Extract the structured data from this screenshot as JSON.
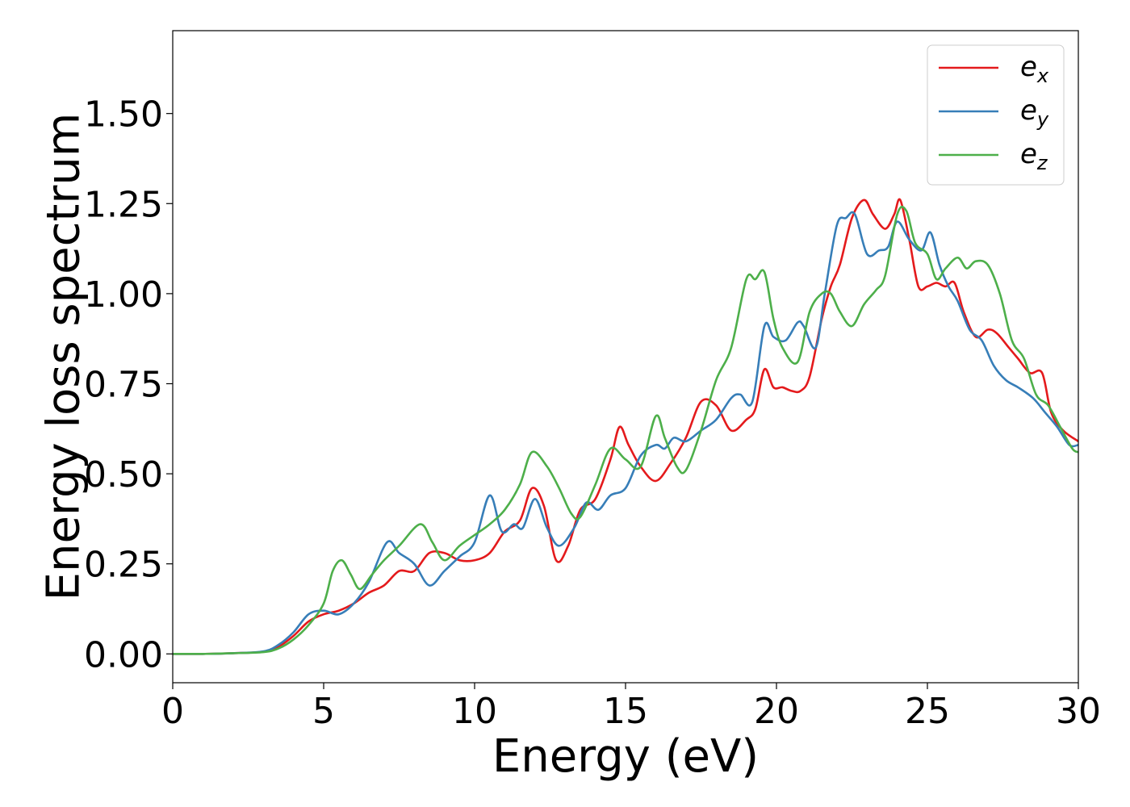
{
  "chart_data": {
    "type": "line",
    "xlabel": "Energy (eV)",
    "ylabel": "Energy loss spectrum",
    "xlim": [
      0,
      30
    ],
    "ylim": [
      -0.08,
      1.73
    ],
    "xticks": [
      0,
      5,
      10,
      15,
      20,
      25,
      30
    ],
    "xtick_labels": [
      "0",
      "5",
      "10",
      "15",
      "20",
      "25",
      "30"
    ],
    "yticks": [
      0.0,
      0.25,
      0.5,
      0.75,
      1.0,
      1.25,
      1.5
    ],
    "ytick_labels": [
      "0.00",
      "0.25",
      "0.50",
      "0.75",
      "1.00",
      "1.25",
      "1.50"
    ],
    "grid": false,
    "legend_position": "top-right",
    "series": [
      {
        "name": "e_x",
        "label_base": "e",
        "label_sub": "x",
        "color": "#e41a1c",
        "x": [
          0,
          1,
          2,
          3,
          3.5,
          4,
          4.5,
          5,
          5.5,
          6,
          6.5,
          7,
          7.5,
          8,
          8.5,
          9,
          9.5,
          10,
          10.5,
          11,
          11.5,
          11.9,
          12.3,
          12.7,
          13.1,
          13.5,
          14,
          14.5,
          14.8,
          15.1,
          15.5,
          16,
          16.5,
          17,
          17.5,
          18,
          18.5,
          19,
          19.3,
          19.6,
          19.9,
          20.2,
          20.5,
          20.8,
          21.1,
          21.5,
          21.8,
          22.1,
          22.5,
          22.9,
          23.2,
          23.6,
          23.9,
          24.1,
          24.4,
          24.7,
          25,
          25.3,
          25.6,
          25.9,
          26.2,
          26.6,
          27,
          27.3,
          27.7,
          28,
          28.4,
          28.8,
          29.1,
          29.5,
          30
        ],
        "y": [
          0,
          0,
          0.002,
          0.006,
          0.02,
          0.05,
          0.09,
          0.11,
          0.12,
          0.14,
          0.17,
          0.19,
          0.23,
          0.23,
          0.28,
          0.28,
          0.26,
          0.26,
          0.28,
          0.34,
          0.37,
          0.46,
          0.41,
          0.26,
          0.3,
          0.4,
          0.43,
          0.54,
          0.63,
          0.58,
          0.52,
          0.48,
          0.53,
          0.6,
          0.7,
          0.69,
          0.62,
          0.65,
          0.68,
          0.79,
          0.74,
          0.74,
          0.73,
          0.73,
          0.77,
          0.93,
          1.02,
          1.08,
          1.21,
          1.26,
          1.22,
          1.18,
          1.22,
          1.26,
          1.15,
          1.02,
          1.02,
          1.03,
          1.02,
          1.03,
          0.95,
          0.88,
          0.9,
          0.89,
          0.85,
          0.82,
          0.78,
          0.78,
          0.67,
          0.62,
          0.59
        ]
      },
      {
        "name": "e_y",
        "label_base": "e",
        "label_sub": "y",
        "color": "#377eb8",
        "x": [
          0,
          1,
          2,
          3,
          3.5,
          4,
          4.5,
          5,
          5.5,
          6,
          6.5,
          7.1,
          7.5,
          8,
          8.5,
          9,
          9.5,
          10,
          10.5,
          10.9,
          11.3,
          11.6,
          12,
          12.4,
          12.8,
          13.3,
          13.7,
          14.1,
          14.5,
          15,
          15.5,
          16,
          16.3,
          16.6,
          17,
          17.5,
          18,
          18.5,
          18.8,
          19.2,
          19.6,
          19.9,
          20.3,
          20.7,
          20.9,
          21.3,
          21.6,
          22,
          22.3,
          22.6,
          23,
          23.4,
          23.7,
          24,
          24.4,
          24.8,
          25.1,
          25.4,
          25.7,
          26,
          26.4,
          26.8,
          27.2,
          27.6,
          28,
          28.5,
          28.9,
          29.3,
          29.7,
          30
        ],
        "y": [
          0,
          0,
          0.002,
          0.007,
          0.025,
          0.06,
          0.11,
          0.12,
          0.11,
          0.14,
          0.2,
          0.31,
          0.28,
          0.25,
          0.19,
          0.23,
          0.27,
          0.31,
          0.44,
          0.34,
          0.36,
          0.35,
          0.43,
          0.35,
          0.3,
          0.35,
          0.42,
          0.4,
          0.44,
          0.46,
          0.55,
          0.58,
          0.57,
          0.6,
          0.59,
          0.62,
          0.65,
          0.71,
          0.72,
          0.7,
          0.91,
          0.88,
          0.87,
          0.92,
          0.91,
          0.85,
          1.0,
          1.19,
          1.21,
          1.22,
          1.11,
          1.12,
          1.13,
          1.2,
          1.15,
          1.12,
          1.17,
          1.08,
          1.02,
          0.98,
          0.9,
          0.87,
          0.8,
          0.76,
          0.74,
          0.71,
          0.67,
          0.63,
          0.58,
          0.58
        ]
      },
      {
        "name": "e_z",
        "label_base": "e",
        "label_sub": "z",
        "color": "#4daf4a",
        "x": [
          0,
          1,
          2,
          3,
          3.5,
          4,
          4.5,
          5,
          5.3,
          5.6,
          5.9,
          6.2,
          6.6,
          7,
          7.5,
          8.2,
          8.6,
          9,
          9.5,
          10,
          10.5,
          11,
          11.5,
          11.9,
          12.4,
          12.8,
          13.2,
          13.5,
          14,
          14.5,
          15,
          15.5,
          16,
          16.3,
          16.7,
          17,
          17.5,
          18,
          18.5,
          19,
          19.3,
          19.6,
          19.9,
          20.2,
          20.7,
          21.1,
          21.5,
          21.8,
          22.1,
          22.5,
          22.9,
          23.3,
          23.6,
          24,
          24.3,
          24.6,
          25,
          25.3,
          25.6,
          26,
          26.3,
          26.6,
          27,
          27.4,
          27.8,
          28.2,
          28.6,
          29,
          29.4,
          29.8,
          30
        ],
        "y": [
          0,
          0,
          0.002,
          0.005,
          0.015,
          0.04,
          0.08,
          0.14,
          0.23,
          0.26,
          0.22,
          0.18,
          0.22,
          0.26,
          0.3,
          0.36,
          0.31,
          0.26,
          0.3,
          0.33,
          0.36,
          0.4,
          0.47,
          0.56,
          0.52,
          0.46,
          0.39,
          0.38,
          0.47,
          0.57,
          0.54,
          0.52,
          0.66,
          0.6,
          0.52,
          0.51,
          0.62,
          0.76,
          0.85,
          1.04,
          1.04,
          1.06,
          0.93,
          0.85,
          0.81,
          0.95,
          1.0,
          1.0,
          0.95,
          0.91,
          0.97,
          1.01,
          1.05,
          1.22,
          1.23,
          1.14,
          1.11,
          1.04,
          1.07,
          1.1,
          1.07,
          1.09,
          1.08,
          1.0,
          0.87,
          0.82,
          0.72,
          0.69,
          0.63,
          0.57,
          0.56
        ]
      }
    ]
  }
}
